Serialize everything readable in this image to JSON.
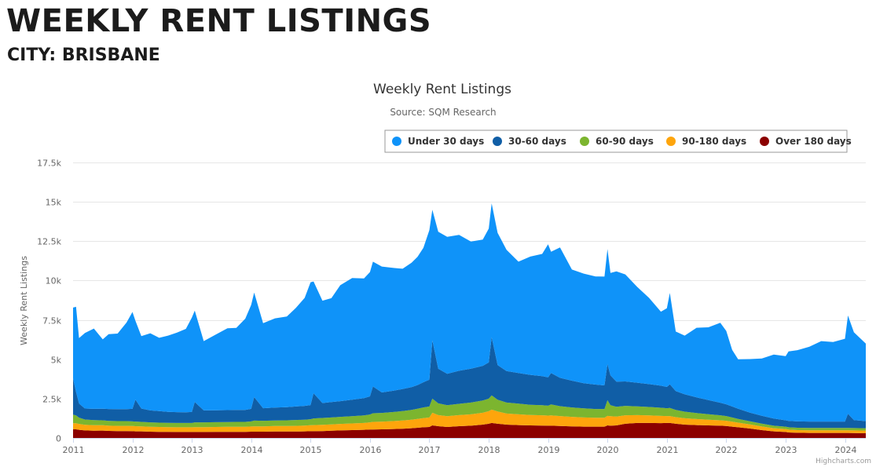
{
  "page": {
    "title": "WEEKLY RENT LISTINGS",
    "subtitle": "CITY: BRISBANE",
    "credits": "Highcharts.com"
  },
  "chart_data": {
    "type": "area",
    "stacked": true,
    "title": "Weekly Rent Listings",
    "subtitle": "Source: SQM Research",
    "xlabel": "",
    "ylabel": "Weekly Rent Listings",
    "ylim": [
      0,
      17500
    ],
    "xlim": [
      2011.0,
      2024.35
    ],
    "y_ticks": [
      0,
      2500,
      5000,
      7500,
      10000,
      12500,
      15000,
      17500
    ],
    "y_tick_labels": [
      "0",
      "2.5k",
      "5k",
      "7.5k",
      "10k",
      "12.5k",
      "15k",
      "17.5k"
    ],
    "x_ticks": [
      2011,
      2012,
      2013,
      2014,
      2015,
      2016,
      2017,
      2018,
      2019,
      2020,
      2021,
      2022,
      2023,
      2024
    ],
    "x_tick_labels": [
      "2011",
      "2012",
      "2013",
      "2014",
      "2015",
      "2016",
      "2017",
      "2018",
      "2019",
      "2020",
      "2021",
      "2022",
      "2023",
      "2024"
    ],
    "grid": true,
    "legend_position": "top-right",
    "x": [
      2011.0,
      2011.05,
      2011.1,
      2011.2,
      2011.35,
      2011.5,
      2011.6,
      2011.75,
      2011.9,
      2012.0,
      2012.05,
      2012.15,
      2012.3,
      2012.45,
      2012.6,
      2012.75,
      2012.9,
      2013.0,
      2013.05,
      2013.2,
      2013.4,
      2013.6,
      2013.75,
      2013.9,
      2014.0,
      2014.05,
      2014.2,
      2014.4,
      2014.6,
      2014.75,
      2014.9,
      2015.0,
      2015.05,
      2015.2,
      2015.35,
      2015.5,
      2015.7,
      2015.9,
      2016.0,
      2016.05,
      2016.2,
      2016.4,
      2016.55,
      2016.7,
      2016.8,
      2016.9,
      2017.0,
      2017.05,
      2017.15,
      2017.3,
      2017.5,
      2017.7,
      2017.9,
      2018.0,
      2018.05,
      2018.15,
      2018.3,
      2018.5,
      2018.7,
      2018.9,
      2019.0,
      2019.05,
      2019.2,
      2019.4,
      2019.6,
      2019.8,
      2019.95,
      2020.0,
      2020.05,
      2020.15,
      2020.3,
      2020.5,
      2020.7,
      2020.9,
      2021.0,
      2021.05,
      2021.15,
      2021.3,
      2021.5,
      2021.7,
      2021.9,
      2022.0,
      2022.1,
      2022.2,
      2022.4,
      2022.6,
      2022.8,
      2023.0,
      2023.05,
      2023.2,
      2023.4,
      2023.6,
      2023.8,
      2024.0,
      2024.05,
      2024.15,
      2024.35
    ],
    "series": [
      {
        "name": "Over 180 days",
        "color": "#8b0000",
        "values": [
          550,
          550,
          520,
          480,
          460,
          470,
          450,
          440,
          440,
          430,
          420,
          420,
          400,
          390,
          390,
          380,
          380,
          380,
          380,
          380,
          390,
          390,
          390,
          390,
          400,
          400,
          400,
          410,
          410,
          410,
          420,
          430,
          430,
          440,
          460,
          480,
          500,
          520,
          540,
          540,
          550,
          570,
          590,
          620,
          650,
          680,
          700,
          800,
          750,
          700,
          750,
          780,
          850,
          900,
          950,
          900,
          850,
          820,
          800,
          790,
          780,
          780,
          760,
          740,
          720,
          720,
          720,
          800,
          780,
          800,
          900,
          950,
          950,
          940,
          950,
          950,
          900,
          850,
          820,
          800,
          780,
          760,
          720,
          680,
          600,
          500,
          420,
          380,
          350,
          330,
          320,
          320,
          320,
          320,
          320,
          310,
          300
        ]
      },
      {
        "name": "90-180 days",
        "color": "#fea50c",
        "values": [
          380,
          380,
          370,
          360,
          350,
          340,
          330,
          330,
          330,
          330,
          330,
          320,
          310,
          310,
          300,
          300,
          300,
          300,
          310,
          310,
          310,
          320,
          320,
          320,
          330,
          340,
          340,
          350,
          350,
          360,
          370,
          380,
          390,
          400,
          400,
          410,
          420,
          430,
          450,
          480,
          480,
          500,
          520,
          540,
          560,
          580,
          600,
          800,
          700,
          680,
          700,
          720,
          750,
          800,
          850,
          780,
          700,
          680,
          660,
          650,
          640,
          650,
          630,
          600,
          580,
          560,
          560,
          600,
          600,
          560,
          540,
          500,
          480,
          460,
          440,
          440,
          420,
          400,
          380,
          360,
          340,
          330,
          310,
          290,
          260,
          230,
          200,
          190,
          180,
          170,
          170,
          170,
          170,
          170,
          170,
          170,
          170
        ]
      },
      {
        "name": "60-90 days",
        "color": "#7cb52f",
        "values": [
          550,
          500,
          400,
          330,
          320,
          310,
          300,
          300,
          300,
          290,
          290,
          280,
          280,
          270,
          270,
          270,
          270,
          270,
          300,
          300,
          300,
          300,
          310,
          310,
          320,
          360,
          350,
          350,
          360,
          370,
          370,
          380,
          420,
          430,
          440,
          450,
          460,
          480,
          500,
          550,
          560,
          580,
          600,
          620,
          650,
          680,
          700,
          900,
          750,
          700,
          720,
          750,
          780,
          800,
          900,
          750,
          700,
          680,
          650,
          640,
          630,
          700,
          630,
          600,
          580,
          560,
          560,
          1000,
          700,
          620,
          600,
          560,
          540,
          520,
          500,
          520,
          460,
          420,
          380,
          350,
          320,
          300,
          270,
          240,
          200,
          180,
          160,
          150,
          150,
          150,
          150,
          150,
          150,
          150,
          150,
          150,
          150
        ]
      },
      {
        "name": "30-60 days",
        "color": "#105ea6",
        "values": [
          2300,
          1500,
          900,
          700,
          720,
          740,
          760,
          760,
          760,
          800,
          1400,
          850,
          760,
          740,
          700,
          690,
          680,
          700,
          1300,
          760,
          760,
          760,
          760,
          760,
          800,
          1500,
          800,
          820,
          840,
          860,
          880,
          900,
          1600,
          950,
          980,
          1000,
          1050,
          1100,
          1150,
          1700,
          1300,
          1350,
          1400,
          1450,
          1500,
          1600,
          1700,
          3700,
          2200,
          2000,
          2100,
          2150,
          2200,
          2300,
          3700,
          2200,
          2000,
          1950,
          1900,
          1850,
          1800,
          2000,
          1800,
          1700,
          1600,
          1550,
          1500,
          2300,
          1900,
          1600,
          1550,
          1500,
          1450,
          1400,
          1350,
          1500,
          1200,
          1100,
          1000,
          900,
          800,
          750,
          700,
          650,
          550,
          500,
          450,
          400,
          400,
          400,
          400,
          400,
          400,
          400,
          900,
          500,
          450
        ]
      },
      {
        "name": "Under 30 days",
        "color": "#0f93f9",
        "values": [
          4500,
          5400,
          4150,
          4800,
          5100,
          4400,
          4750,
          4800,
          5500,
          6150,
          5000,
          4600,
          4900,
          4650,
          4840,
          5050,
          5300,
          6000,
          5800,
          4400,
          4800,
          5200,
          5210,
          5800,
          6600,
          6640,
          5400,
          5670,
          5760,
          6250,
          6860,
          7800,
          7100,
          6500,
          6600,
          7360,
          7730,
          7600,
          7900,
          7930,
          8000,
          7800,
          7640,
          7900,
          8140,
          8540,
          9500,
          8300,
          8700,
          8700,
          8630,
          8080,
          8020,
          8500,
          8500,
          8400,
          7700,
          7070,
          7510,
          7760,
          8450,
          7700,
          8280,
          7060,
          6960,
          6870,
          6910,
          7300,
          6500,
          7000,
          6800,
          6090,
          5480,
          4700,
          5000,
          5800,
          3780,
          3730,
          4420,
          4620,
          5080,
          4660,
          3600,
          3140,
          3400,
          3640,
          4070,
          4080,
          4420,
          4530,
          4760,
          5110,
          5060,
          5260,
          6240,
          5580,
          4930
        ]
      }
    ]
  }
}
